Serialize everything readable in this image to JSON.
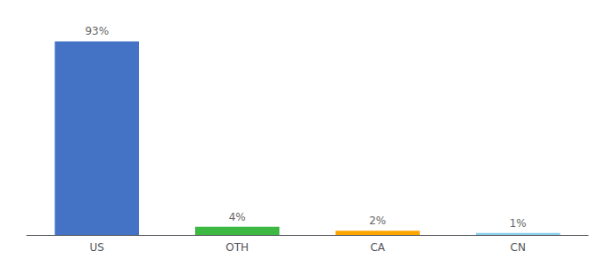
{
  "chart_data": {
    "type": "bar",
    "categories": [
      "US",
      "OTH",
      "CA",
      "CN"
    ],
    "values": [
      93,
      4,
      2,
      1
    ],
    "value_labels": [
      "93%",
      "4%",
      "2%",
      "1%"
    ],
    "data_labels": true,
    "colors": [
      "#4472C4",
      "#3CB843",
      "#FFA500",
      "#87CEEB"
    ],
    "ylim": [
      0,
      100
    ],
    "grid": false,
    "tick_labels": "x"
  }
}
